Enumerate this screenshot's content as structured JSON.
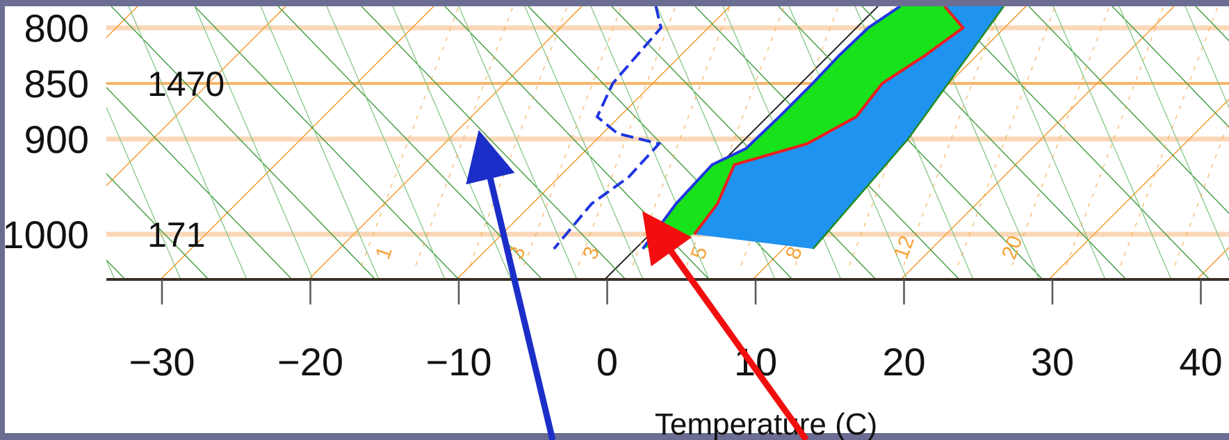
{
  "colors": {
    "frame": "#6b6e92",
    "plot_bg": "#ffffff",
    "isobar": "#f8c79a",
    "isobar_major": "#f5a94e",
    "isotherm": "#f5a23a",
    "dry_adiabat": "#3c9a3c",
    "moist_adiabat": "#7cc27c",
    "mixing_ratio": "#f5a23a",
    "zero_isotherm": "#222222",
    "dewpoint": "#1f36e0",
    "dewpoint_env": "#1f36e0",
    "temperature": "#ef1c1c",
    "cape_fill": "#1e93ef",
    "cin_fill": "#18e21a",
    "axis": "#3a2f25",
    "arrow_blue": "#1c2ec8",
    "arrow_red": "#f20e0e"
  },
  "chart_data": {
    "type": "line",
    "xlabel": "Temperature (C)",
    "ylabel": "",
    "x_ticks": [
      -30,
      -20,
      -10,
      0,
      10,
      20,
      30,
      40
    ],
    "xlim": [
      -33.7,
      42.5
    ],
    "pressure_ticks": [
      {
        "p": 800,
        "label": "800"
      },
      {
        "p": 850,
        "label": "850"
      },
      {
        "p": 900,
        "label": "900"
      },
      {
        "p": 1000,
        "label": "1000"
      }
    ],
    "height_labels": [
      {
        "p": 850,
        "label": "1470"
      },
      {
        "p": 1000,
        "label": "171"
      }
    ],
    "mixing_ratio_labels": [
      {
        "label": "1",
        "x": -16.5
      },
      {
        "label": "3",
        "x": -7.5
      },
      {
        "label": "3",
        "x": -2.5
      },
      {
        "label": "5",
        "x": 4.8
      },
      {
        "label": "8",
        "x": 11.2
      },
      {
        "label": "12",
        "x": 18.5
      },
      {
        "label": "20",
        "x": 25.8
      }
    ],
    "grid": true,
    "series": [
      {
        "key": "temperature",
        "points": [
          [
            4.5,
            776
          ],
          [
            7.2,
            800
          ],
          [
            6.5,
            825
          ],
          [
            5.5,
            850
          ],
          [
            6.0,
            880
          ],
          [
            4.5,
            905
          ],
          [
            1.0,
            927
          ],
          [
            2.5,
            968
          ],
          [
            3.0,
            1000
          ]
        ]
      },
      {
        "key": "parcel",
        "points": [
          [
            1.5,
            776
          ],
          [
            0.8,
            800
          ],
          [
            0.7,
            825
          ],
          [
            0.8,
            850
          ],
          [
            0.8,
            880
          ],
          [
            0.7,
            910
          ],
          [
            -0.5,
            927
          ],
          [
            -0.3,
            968
          ],
          [
            0.5,
            1015
          ]
        ]
      },
      {
        "key": "dewpoint",
        "points": [
          [
            -15,
            776
          ],
          [
            -13.2,
            800
          ],
          [
            -12.7,
            850
          ],
          [
            -11.5,
            880
          ],
          [
            -9.0,
            895
          ],
          [
            -5.5,
            905
          ],
          [
            -5.3,
            940
          ],
          [
            -6.0,
            968
          ],
          [
            -5.5,
            1015
          ]
        ]
      },
      {
        "key": "moist_adiabat_env",
        "points": [
          [
            8.5,
            776
          ],
          [
            11.0,
            900
          ],
          [
            12.0,
            1015
          ]
        ]
      }
    ]
  }
}
